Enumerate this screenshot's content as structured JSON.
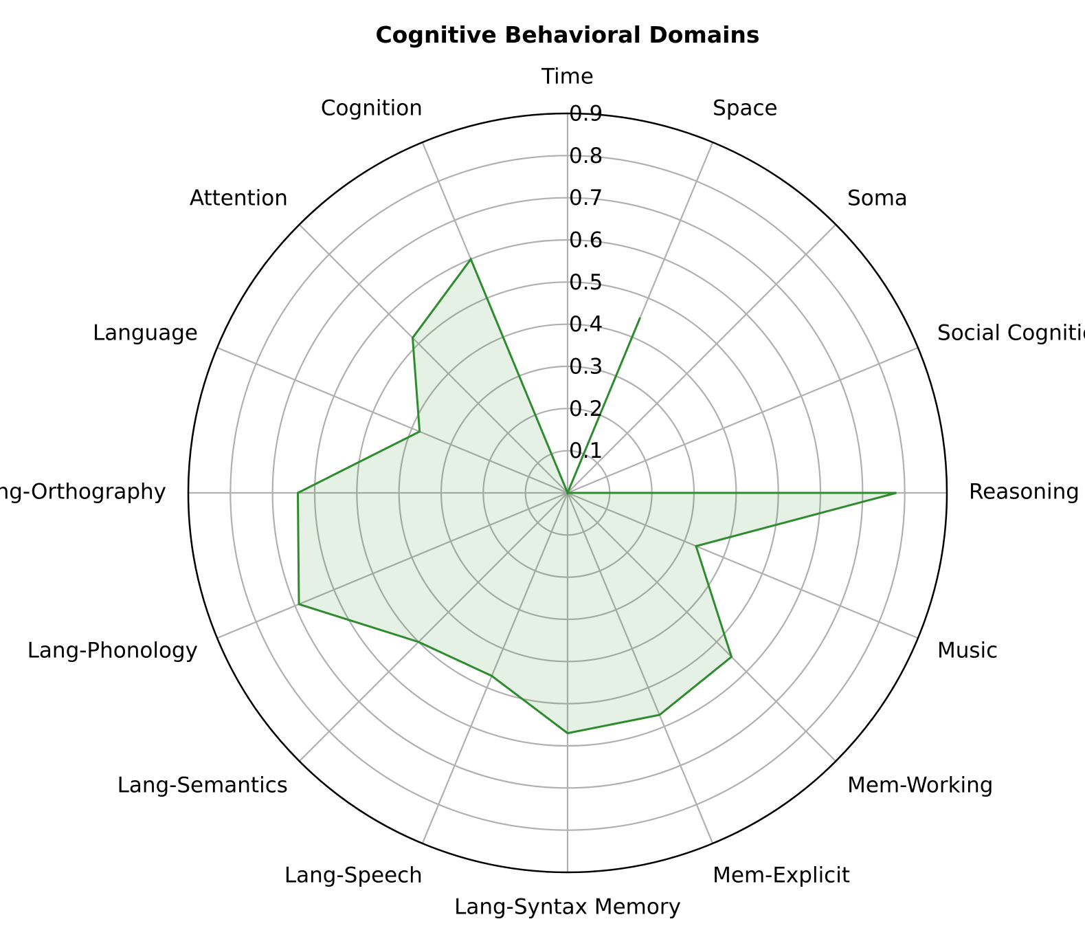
{
  "chart_data": {
    "type": "radar",
    "title": "Cognitive Behavioral Domains",
    "categories": [
      "Time",
      "Space",
      "Soma",
      "Social Cognition",
      "Reasoning",
      "Music",
      "Mem-Working",
      "Mem-Explicit",
      "Lang-Syntax Memory",
      "Lang-Speech",
      "Lang-Semantics",
      "Lang-Phonology",
      "Lang-Orthography",
      "Language",
      "Attention",
      "Cognition"
    ],
    "values": [
      0.0,
      0.45,
      0.0,
      0.0,
      0.78,
      0.33,
      0.55,
      0.57,
      0.57,
      0.47,
      0.5,
      0.69,
      0.64,
      0.38,
      0.52,
      0.6
    ],
    "rlim": [
      0,
      0.9
    ],
    "rticks": [
      "0.1",
      "0.2",
      "0.3",
      "0.4",
      "0.5",
      "0.6",
      "0.7",
      "0.8",
      "0.9"
    ],
    "grid": true,
    "colors": {
      "line": "#2e8b2e",
      "fill": "#2e8b2e",
      "grid": "#b0b0b0"
    }
  }
}
